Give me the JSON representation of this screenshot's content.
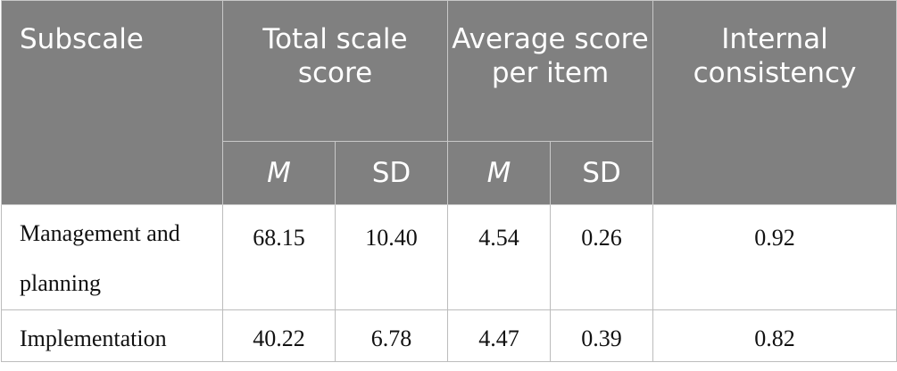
{
  "table": {
    "header": {
      "subscale": "Subscale",
      "total_scale_score": "Total scale score",
      "average_score_per_item": "Average score per item",
      "internal_consistency": "Internal consistency",
      "sub": [
        "M",
        "SD",
        "M",
        "SD"
      ]
    },
    "rows": [
      {
        "subscale": "Management and planning",
        "total_m": "68.15",
        "total_sd": "10.40",
        "avg_m": "4.54",
        "avg_sd": "0.26",
        "internal_consistency": "0.92"
      },
      {
        "subscale": "Implementation",
        "total_m": "40.22",
        "total_sd": "6.78",
        "avg_m": "4.47",
        "avg_sd": "0.39",
        "internal_consistency": "0.82"
      }
    ]
  }
}
